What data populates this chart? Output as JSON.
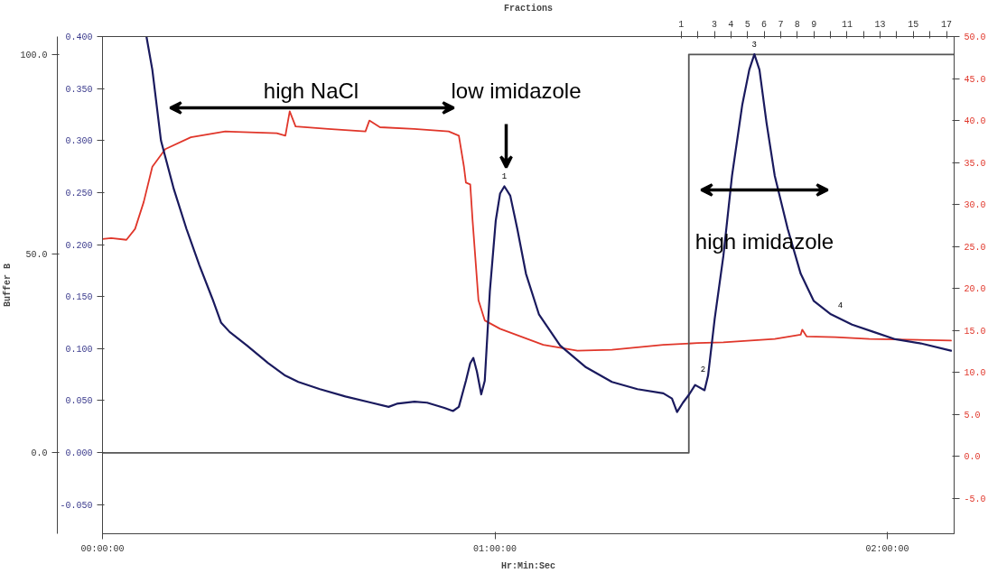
{
  "chart_data": {
    "type": "line",
    "xlabel": "Hr:Min:Sec",
    "x2label": "Fractions",
    "y3label": "Buffer B",
    "xlim": [
      0,
      2.17
    ],
    "xticks": [
      {
        "value": 0,
        "label": "00:00:00"
      },
      {
        "value": 1,
        "label": "01:00:00"
      },
      {
        "value": 2,
        "label": "02:00:00"
      }
    ],
    "x2lim": [
      -33.9,
      17.46
    ],
    "x2ticks": [
      1,
      {
        "value": 2,
        "label": null
      },
      3,
      4,
      5,
      6,
      7,
      8,
      9,
      {
        "value": 10,
        "label": null
      },
      11,
      {
        "value": 12,
        "label": null
      },
      13,
      {
        "value": 14,
        "label": null
      },
      15,
      {
        "value": 16,
        "label": null
      },
      17
    ],
    "ylim": [
      -0.078,
      0.4
    ],
    "yticks": [
      {
        "value": -0.05,
        "label": "-0.050"
      },
      {
        "value": 0,
        "label": "0.000"
      },
      {
        "value": 0.05,
        "label": "0.050"
      },
      {
        "value": 0.1,
        "label": "0.100"
      },
      {
        "value": 0.15,
        "label": "0.150"
      },
      {
        "value": 0.2,
        "label": "0.200"
      },
      {
        "value": 0.25,
        "label": "0.250"
      },
      {
        "value": 0.3,
        "label": "0.300"
      },
      {
        "value": 0.35,
        "label": "0.350"
      },
      {
        "value": 0.4,
        "label": "0.400"
      }
    ],
    "y2lim": [
      -9.2,
      50
    ],
    "y2ticks": [
      {
        "value": -5,
        "label": "-5.0"
      },
      {
        "value": 0,
        "label": "0.0"
      },
      {
        "value": 5,
        "label": "5.0"
      },
      {
        "value": 10,
        "label": "10.0"
      },
      {
        "value": 15,
        "label": "15.0"
      },
      {
        "value": 20,
        "label": "20.0"
      },
      {
        "value": 25,
        "label": "25.0"
      },
      {
        "value": 30,
        "label": "30.0"
      },
      {
        "value": 35,
        "label": "35.0"
      },
      {
        "value": 40,
        "label": "40.0"
      },
      {
        "value": 45,
        "label": "45.0"
      },
      {
        "value": 50,
        "label": "50.0"
      }
    ],
    "y3lim": [
      -20.3,
      104.5
    ],
    "y3ticks": [
      {
        "value": 0,
        "label": "0.0"
      },
      {
        "value": 50,
        "label": "50.0"
      },
      {
        "value": 100,
        "label": "100.0"
      }
    ],
    "series": [
      {
        "axis": "y2",
        "color": "#e0362a",
        "x": [
          0,
          0.022,
          0.061,
          0.083,
          0.105,
          0.127,
          0.16,
          0.225,
          0.313,
          0.444,
          0.466,
          0.477,
          0.492,
          0.575,
          0.67,
          0.68,
          0.707,
          0.794,
          0.882,
          0.908,
          0.921,
          0.926,
          0.937,
          0.943,
          0.958,
          0.974,
          1.013,
          1.123,
          1.21,
          1.298,
          1.429,
          1.516,
          1.582,
          1.713,
          1.779,
          1.783,
          1.794,
          1.867,
          1.954,
          2.162
        ],
        "values": [
          25.9,
          26.0,
          25.8,
          27.1,
          30.3,
          34.5,
          36.6,
          38.0,
          38.7,
          38.5,
          38.2,
          41.1,
          39.3,
          39.0,
          38.7,
          40.0,
          39.2,
          39.0,
          38.7,
          38.2,
          34.5,
          32.6,
          32.4,
          28.1,
          18.6,
          16.2,
          15.2,
          13.3,
          12.6,
          12.7,
          13.3,
          13.5,
          13.6,
          14.0,
          14.5,
          15.1,
          14.3,
          14.2,
          14.0,
          13.8
        ]
      },
      {
        "axis": "y3",
        "color": "#555555",
        "x": [
          0,
          1.494,
          1.494,
          2.17
        ],
        "values": [
          0,
          0,
          100,
          100
        ]
      },
      {
        "axis": "y",
        "color": "#1a1a5e",
        "x": [
          0.112,
          0.127,
          0.149,
          0.182,
          0.214,
          0.247,
          0.28,
          0.302,
          0.324,
          0.368,
          0.422,
          0.466,
          0.499,
          0.554,
          0.619,
          0.685,
          0.729,
          0.75,
          0.795,
          0.827,
          0.871,
          0.893,
          0.908,
          0.926,
          0.937,
          0.945,
          0.954,
          0.965,
          0.974,
          0.987,
          1.002,
          1.013,
          1.024,
          1.039,
          1.057,
          1.079,
          1.112,
          1.166,
          1.232,
          1.298,
          1.363,
          1.429,
          1.451,
          1.464,
          1.479,
          1.495,
          1.51,
          1.534,
          1.543,
          1.56,
          1.582,
          1.604,
          1.63,
          1.648,
          1.661,
          1.674,
          1.692,
          1.713,
          1.746,
          1.779,
          1.812,
          1.856,
          1.91,
          1.965,
          2.02,
          2.085,
          2.162
        ],
        "values": [
          0.4,
          0.368,
          0.3,
          0.253,
          0.215,
          0.18,
          0.148,
          0.125,
          0.116,
          0.103,
          0.086,
          0.074,
          0.068,
          0.061,
          0.054,
          0.048,
          0.044,
          0.047,
          0.049,
          0.048,
          0.043,
          0.04,
          0.044,
          0.069,
          0.086,
          0.091,
          0.078,
          0.056,
          0.069,
          0.155,
          0.223,
          0.249,
          0.256,
          0.247,
          0.215,
          0.172,
          0.133,
          0.103,
          0.082,
          0.068,
          0.061,
          0.057,
          0.052,
          0.039,
          0.048,
          0.056,
          0.065,
          0.06,
          0.074,
          0.129,
          0.189,
          0.266,
          0.334,
          0.368,
          0.383,
          0.368,
          0.317,
          0.266,
          0.215,
          0.172,
          0.146,
          0.133,
          0.123,
          0.116,
          0.109,
          0.105,
          0.098
        ]
      }
    ],
    "annotations": [
      "high NaCl",
      "low imidazole",
      "high imidazole",
      {
        "text": "1",
        "x": 1.024,
        "y": 0.256
      },
      {
        "text": "2",
        "x": 1.53,
        "y": 0.071
      },
      {
        "text": "3",
        "x": 1.661,
        "y": 0.383
      },
      {
        "text": "4",
        "x": 1.88,
        "y": 0.132
      }
    ]
  }
}
